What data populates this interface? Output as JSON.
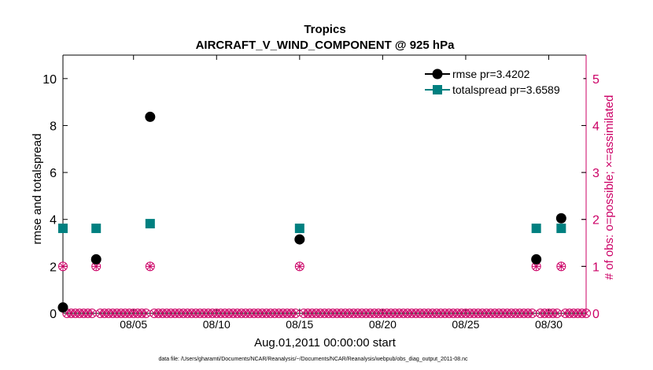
{
  "chart_data": {
    "type": "scatter",
    "title": "Tropics",
    "subtitle": "AIRCRAFT_V_WIND_COMPONENT @ 925 hPa",
    "xlabel": "Aug.01,2011 00:00:00 start",
    "ylabel_left": "rmse and totalspread",
    "ylabel_right": "# of obs: o=possible; ×=assimilated",
    "footnote": "data file: /Users/gharamti/Documents/NCAR/Reanalysis/~/Documents/NCAR/Reanalysis/webpub/obs_diag_output_2011-08.nc",
    "x_tick_labels": [
      "08/05",
      "08/10",
      "08/15",
      "08/20",
      "08/25",
      "08/30"
    ],
    "x_tick_days": [
      5,
      10,
      15,
      20,
      25,
      30
    ],
    "xlim_days": [
      0.75,
      32.25
    ],
    "ylim_left": [
      0,
      11
    ],
    "y_ticks_left": [
      0,
      2,
      4,
      6,
      8,
      10
    ],
    "ylim_right": [
      0,
      5.5
    ],
    "y_ticks_right": [
      0,
      1,
      2,
      3,
      4,
      5
    ],
    "legend_position": "top-right",
    "series": [
      {
        "name": "rmse pr=3.4202",
        "axis": "left",
        "color": "#000000",
        "marker": "circle",
        "points": [
          [
            0.75,
            0.25
          ],
          [
            2.75,
            2.3
          ],
          [
            6.0,
            8.37
          ],
          [
            15.0,
            3.15
          ],
          [
            29.25,
            2.3
          ],
          [
            30.75,
            4.05
          ]
        ]
      },
      {
        "name": "totalspread pr=3.6589",
        "axis": "left",
        "color": "#008080",
        "marker": "square",
        "points": [
          [
            0.75,
            3.62
          ],
          [
            2.75,
            3.62
          ],
          [
            6.0,
            3.82
          ],
          [
            15.0,
            3.62
          ],
          [
            29.25,
            3.62
          ],
          [
            30.75,
            3.62
          ]
        ]
      },
      {
        "name": "obs possible",
        "axis": "right",
        "color": "#cc0066",
        "marker": "circle-open",
        "points_all_days_step": 0.25,
        "nonzero": [
          [
            0.75,
            1
          ],
          [
            2.75,
            1
          ],
          [
            6.0,
            1
          ],
          [
            15.0,
            1
          ],
          [
            29.25,
            1
          ],
          [
            30.75,
            1
          ]
        ]
      },
      {
        "name": "obs assimilated",
        "axis": "right",
        "color": "#cc0066",
        "marker": "x",
        "points_all_days_step": 0.25,
        "nonzero": [
          [
            0.75,
            1
          ],
          [
            2.75,
            1
          ],
          [
            6.0,
            1
          ],
          [
            15.0,
            1
          ],
          [
            29.25,
            1
          ],
          [
            30.75,
            1
          ]
        ]
      }
    ]
  }
}
